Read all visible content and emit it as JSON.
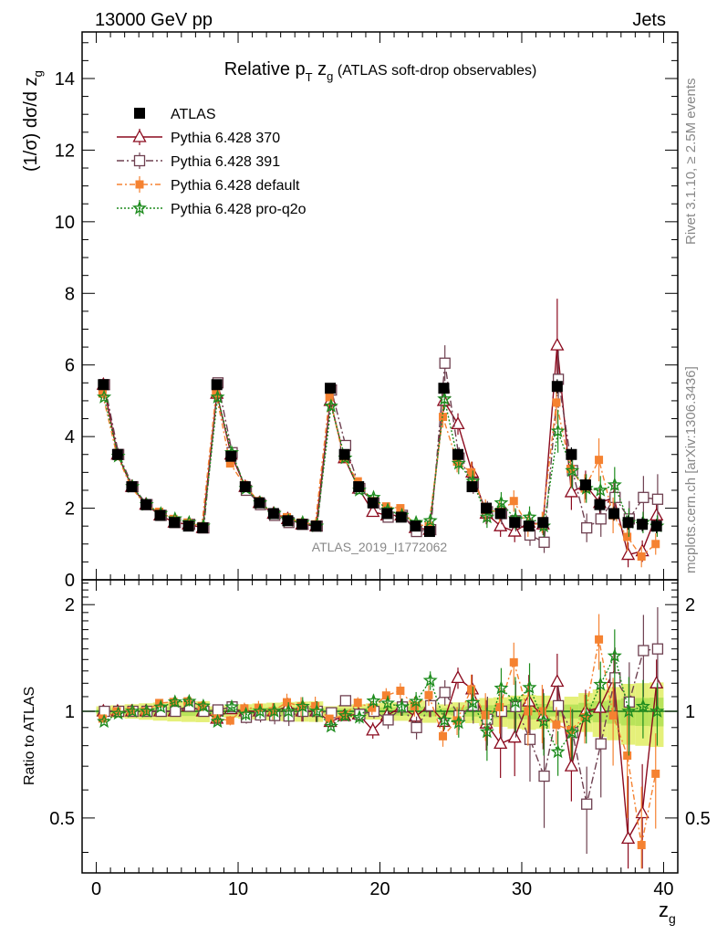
{
  "header": {
    "top_left": "13000 GeV pp",
    "top_right": "Jets",
    "side_rivet": "Rivet 3.1.10, ≥ 2.5M events",
    "side_mcplots": "mcplots.cern.ch [arXiv:1306.3436]",
    "analysis_id": "ATLAS_2019_I1772062"
  },
  "chart_data": [
    {
      "type": "line",
      "panel": "main",
      "title": "Relative p_T z_g (ATLAS soft-drop observables)",
      "title_main": "Relative p",
      "title_sub_T": "T",
      "title_mid": " z",
      "title_sub_g": "g",
      "title_rest": " (ATLAS soft-drop observables)",
      "ylabel": "(1/σ) dσ/d z",
      "ylabel_sub": "g",
      "xlabel": "z",
      "xlabel_sub": "g",
      "xlim": [
        -1,
        41
      ],
      "ylim": [
        0,
        15.3
      ],
      "yticks": [
        0,
        2,
        4,
        6,
        8,
        10,
        12,
        14
      ],
      "xticks": [
        0,
        10,
        20,
        30,
        40
      ],
      "legend_position": "top-left",
      "x": [
        0.5,
        1.5,
        2.5,
        3.5,
        4.5,
        5.5,
        6.5,
        7.5,
        8.5,
        9.5,
        10.5,
        11.5,
        12.5,
        13.5,
        14.5,
        15.5,
        16.5,
        17.5,
        18.5,
        19.5,
        20.5,
        21.5,
        22.5,
        23.5,
        24.5,
        25.5,
        26.5,
        27.5,
        28.5,
        29.5,
        30.5,
        31.5,
        32.5,
        33.5,
        34.5,
        35.5,
        36.5,
        37.5,
        38.5,
        39.5
      ],
      "series": [
        {
          "name": "ATLAS",
          "color": "#000000",
          "marker": "square-filled",
          "dash": "none",
          "values": [
            5.45,
            3.5,
            2.6,
            2.1,
            1.8,
            1.6,
            1.5,
            1.45,
            5.45,
            3.45,
            2.6,
            2.15,
            1.85,
            1.65,
            1.55,
            1.5,
            5.35,
            3.5,
            2.6,
            2.15,
            1.85,
            1.75,
            1.5,
            1.35,
            5.35,
            3.5,
            2.6,
            2.0,
            1.85,
            1.6,
            1.5,
            1.6,
            5.4,
            3.5,
            2.65,
            2.1,
            1.85,
            1.6,
            1.55,
            1.5
          ],
          "errors": [
            0.05,
            0.05,
            0.05,
            0.05,
            0.05,
            0.05,
            0.05,
            0.05,
            0.05,
            0.05,
            0.05,
            0.05,
            0.05,
            0.05,
            0.05,
            0.05,
            0.05,
            0.05,
            0.05,
            0.05,
            0.05,
            0.05,
            0.05,
            0.05,
            0.1,
            0.1,
            0.1,
            0.1,
            0.1,
            0.1,
            0.1,
            0.1,
            0.2,
            0.2,
            0.2,
            0.2,
            0.2,
            0.2,
            0.2,
            0.2
          ]
        },
        {
          "name": "Pythia 6.428 370",
          "color": "#8b0a1e",
          "marker": "triangle-open",
          "dash": "none",
          "values": [
            5.45,
            3.5,
            2.6,
            2.1,
            1.8,
            1.6,
            1.55,
            1.45,
            5.2,
            3.5,
            2.6,
            2.15,
            1.85,
            1.7,
            1.55,
            1.5,
            5.0,
            3.4,
            2.55,
            1.9,
            1.8,
            1.8,
            1.45,
            1.4,
            5.0,
            4.35,
            3.0,
            1.85,
            1.5,
            1.35,
            1.6,
            1.55,
            6.55,
            2.45,
            2.65,
            2.15,
            2.3,
            0.7,
            0.8,
            1.8
          ],
          "errors": [
            0.05,
            0.05,
            0.05,
            0.05,
            0.05,
            0.05,
            0.05,
            0.05,
            0.1,
            0.1,
            0.1,
            0.1,
            0.1,
            0.1,
            0.1,
            0.1,
            0.1,
            0.1,
            0.1,
            0.1,
            0.1,
            0.1,
            0.1,
            0.1,
            0.3,
            0.3,
            0.3,
            0.3,
            0.3,
            0.3,
            0.3,
            0.3,
            1.3,
            0.5,
            0.4,
            0.4,
            0.4,
            0.35,
            0.3,
            0.3
          ]
        },
        {
          "name": "Pythia 6.428 391",
          "color": "#6e4050",
          "marker": "square-open",
          "dash": "8,3,2,3",
          "values": [
            5.45,
            3.5,
            2.6,
            2.1,
            1.8,
            1.6,
            1.55,
            1.45,
            5.5,
            3.55,
            2.5,
            2.1,
            1.8,
            1.6,
            1.55,
            1.5,
            5.3,
            3.75,
            2.55,
            2.15,
            1.75,
            1.8,
            1.35,
            1.4,
            6.05,
            3.4,
            2.7,
            1.9,
            1.85,
            1.65,
            1.25,
            1.05,
            5.6,
            3.05,
            1.45,
            1.7,
            2.3,
            1.7,
            2.3,
            2.25
          ],
          "errors": [
            0.05,
            0.05,
            0.05,
            0.05,
            0.05,
            0.05,
            0.05,
            0.05,
            0.1,
            0.1,
            0.1,
            0.1,
            0.1,
            0.1,
            0.1,
            0.1,
            0.1,
            0.1,
            0.1,
            0.1,
            0.1,
            0.1,
            0.1,
            0.1,
            0.5,
            0.3,
            0.3,
            0.3,
            0.3,
            0.3,
            0.3,
            0.3,
            0.8,
            0.5,
            0.4,
            0.5,
            0.5,
            0.5,
            0.6,
            0.7
          ]
        },
        {
          "name": "Pythia 6.428 default",
          "color": "#f58231",
          "marker": "square-filled-small",
          "dash": "6,3,2,3",
          "values": [
            5.2,
            3.5,
            2.6,
            2.1,
            1.9,
            1.7,
            1.6,
            1.5,
            5.2,
            3.25,
            2.65,
            2.2,
            1.85,
            1.75,
            1.6,
            1.55,
            5.1,
            3.4,
            2.75,
            2.2,
            2.05,
            2.0,
            1.55,
            1.5,
            4.55,
            3.3,
            3.0,
            1.95,
            1.9,
            2.2,
            1.5,
            1.6,
            4.95,
            3.1,
            2.55,
            3.35,
            1.8,
            1.2,
            0.65,
            1.0
          ],
          "errors": [
            0.05,
            0.05,
            0.05,
            0.05,
            0.05,
            0.05,
            0.05,
            0.05,
            0.1,
            0.1,
            0.1,
            0.1,
            0.1,
            0.1,
            0.1,
            0.1,
            0.1,
            0.1,
            0.1,
            0.1,
            0.1,
            0.1,
            0.1,
            0.1,
            0.3,
            0.3,
            0.3,
            0.3,
            0.3,
            0.3,
            0.3,
            0.3,
            0.6,
            0.5,
            0.4,
            0.6,
            0.5,
            0.4,
            0.3,
            0.3
          ]
        },
        {
          "name": "Pythia 6.428 pro-q2o",
          "color": "#1e8c1e",
          "marker": "star-open",
          "dash": "2,2",
          "values": [
            5.1,
            3.45,
            2.6,
            2.1,
            1.85,
            1.7,
            1.6,
            1.5,
            5.1,
            3.55,
            2.55,
            2.15,
            1.85,
            1.65,
            1.6,
            1.5,
            4.85,
            3.4,
            2.5,
            2.3,
            1.95,
            1.8,
            1.6,
            1.65,
            5.05,
            3.25,
            2.75,
            1.75,
            2.15,
            1.7,
            1.75,
            1.5,
            4.15,
            3.05,
            2.55,
            2.5,
            2.65,
            1.6,
            1.6,
            1.5
          ],
          "errors": [
            0.05,
            0.05,
            0.05,
            0.05,
            0.05,
            0.05,
            0.05,
            0.05,
            0.1,
            0.1,
            0.1,
            0.1,
            0.1,
            0.1,
            0.1,
            0.1,
            0.1,
            0.1,
            0.1,
            0.1,
            0.1,
            0.1,
            0.1,
            0.1,
            0.3,
            0.3,
            0.3,
            0.3,
            0.3,
            0.3,
            0.3,
            0.3,
            0.6,
            0.5,
            0.4,
            0.4,
            0.5,
            0.4,
            0.3,
            0.3
          ]
        }
      ]
    },
    {
      "type": "line",
      "panel": "ratio",
      "ylabel": "Ratio to ATLAS",
      "ylim": [
        0.35,
        2.35
      ],
      "yticks": [
        0.5,
        1,
        2
      ],
      "ytick_labels": [
        "0.5",
        "1",
        "2"
      ],
      "log_scale_y": true,
      "reference_line": 1,
      "reference_band_color": "#e5f07a",
      "note": ""
    }
  ]
}
